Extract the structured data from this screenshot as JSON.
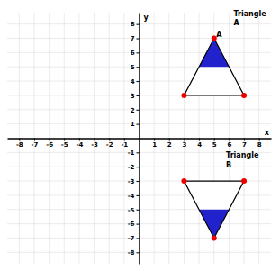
{
  "chart_data": {
    "type": "polygon",
    "x_label": "x",
    "y_label": "y",
    "xlim": [
      -8.8,
      8.8
    ],
    "ylim": [
      -8.8,
      8.8
    ],
    "xticks": [
      -8,
      -7,
      -6,
      -5,
      -4,
      -3,
      -2,
      -1,
      1,
      2,
      3,
      4,
      5,
      6,
      7,
      8
    ],
    "yticks": [
      -8,
      -7,
      -6,
      -5,
      -4,
      -3,
      -2,
      -1,
      1,
      2,
      3,
      4,
      5,
      6,
      7,
      8
    ],
    "grid": true,
    "series": [
      {
        "x": [
          5,
          3,
          7
        ],
        "y": [
          7,
          3,
          3
        ],
        "color": "#2222cc",
        "colors": [
          "#ee0000",
          "#ee0000",
          "#ee0000"
        ],
        "line_style": "solid",
        "marker": "circle"
      },
      {
        "x": [
          4,
          6,
          7,
          3
        ],
        "y": [
          5,
          5,
          3,
          3
        ],
        "color": "#ffffff",
        "line_style": "none"
      },
      {
        "x": [
          3,
          7,
          5
        ],
        "y": [
          -3,
          -3,
          -7
        ],
        "color": "#2222cc",
        "colors": [
          "#ee0000",
          "#ee0000",
          "#ee0000"
        ],
        "line_style": "solid",
        "marker": "circle"
      },
      {
        "x": [
          4,
          6,
          7,
          3
        ],
        "y": [
          -5,
          -5,
          -3,
          -3
        ],
        "color": "#ffffff",
        "line_style": "none"
      }
    ],
    "annotations": [
      {
        "text": "A",
        "x": 5.15,
        "y": 7.1
      },
      {
        "text": "Triangle",
        "x": 6.3,
        "y": 8.55
      },
      {
        "text": "A",
        "x": 6.3,
        "y": 7.9
      },
      {
        "text": "Triangle",
        "x": 5.8,
        "y": -1.35
      },
      {
        "text": "B",
        "x": 5.8,
        "y": -2.05
      }
    ]
  }
}
